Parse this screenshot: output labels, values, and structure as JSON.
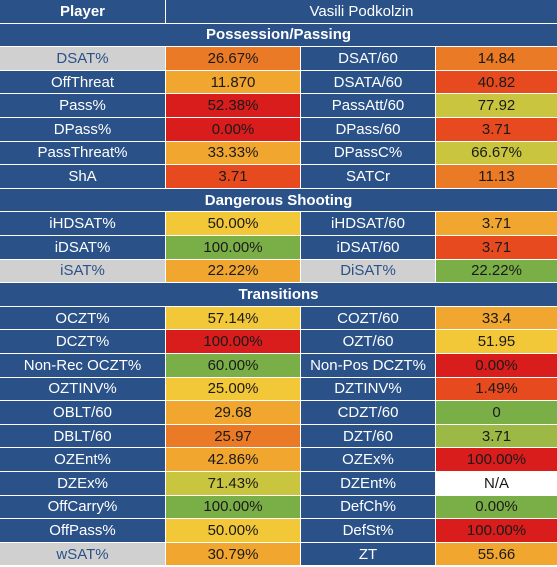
{
  "header": {
    "player_label": "Player",
    "player_name": "Vasili Podkolzin"
  },
  "colors": {
    "red": "#d91c1c",
    "red_orange": "#e64a1e",
    "orange": "#ea7a25",
    "orange_light": "#f1a630",
    "yellow": "#f3c838",
    "yellow_green": "#c9c53f",
    "green": "#7aaf48",
    "green_mid": "#9bb944",
    "white": "#ffffff",
    "label_blue": "#2b5288",
    "label_gray": "#d0d0d0"
  },
  "sections": [
    {
      "title": "Possession/Passing",
      "rows": [
        {
          "l1": "DSAT%",
          "v1": "26.67%",
          "c1": "#ea7a25",
          "g1": true,
          "l2": "DSAT/60",
          "v2": "14.84",
          "c2": "#ea7a25"
        },
        {
          "l1": "OffThreat",
          "v1": "11.870",
          "c1": "#f1a630",
          "l2": "DSATA/60",
          "v2": "40.82",
          "c2": "#e64a1e"
        },
        {
          "l1": "Pass%",
          "v1": "52.38%",
          "c1": "#d91c1c",
          "l2": "PassAtt/60",
          "v2": "77.92",
          "c2": "#c9c53f"
        },
        {
          "l1": "DPass%",
          "v1": "0.00%",
          "c1": "#d91c1c",
          "l2": "DPass/60",
          "v2": "3.71",
          "c2": "#e64a1e"
        },
        {
          "l1": "PassThreat%",
          "v1": "33.33%",
          "c1": "#f1a630",
          "l2": "DPassC%",
          "v2": "66.67%",
          "c2": "#c9c53f"
        },
        {
          "l1": "ShA",
          "v1": "3.71",
          "c1": "#e64a1e",
          "l2": "SATCr",
          "v2": "11.13",
          "c2": "#ea7a25"
        }
      ]
    },
    {
      "title": "Dangerous Shooting",
      "rows": [
        {
          "l1": "iHDSAT%",
          "v1": "50.00%",
          "c1": "#f3c838",
          "l2": "iHDSAT/60",
          "v2": "3.71",
          "c2": "#f1a630"
        },
        {
          "l1": "iDSAT%",
          "v1": "100.00%",
          "c1": "#7aaf48",
          "l2": "iDSAT/60",
          "v2": "3.71",
          "c2": "#e64a1e"
        },
        {
          "l1": "iSAT%",
          "v1": "22.22%",
          "c1": "#f1a630",
          "g1": true,
          "l2": "DiSAT%",
          "v2": "22.22%",
          "c2": "#7aaf48",
          "g2": true
        }
      ]
    },
    {
      "title": "Transitions",
      "rows": [
        {
          "l1": "OCZT%",
          "v1": "57.14%",
          "c1": "#f3c838",
          "l2": "COZT/60",
          "v2": "33.4",
          "c2": "#f1a630"
        },
        {
          "l1": "DCZT%",
          "v1": "100.00%",
          "c1": "#d91c1c",
          "l2": "OZT/60",
          "v2": "51.95",
          "c2": "#f3c838"
        },
        {
          "l1": "Non-Rec OCZT%",
          "v1": "60.00%",
          "c1": "#7aaf48",
          "l2": "Non-Pos DCZT%",
          "v2": "0.00%",
          "c2": "#d91c1c"
        },
        {
          "l1": "OZTINV%",
          "v1": "25.00%",
          "c1": "#f3c838",
          "l2": "DZTINV%",
          "v2": "1.49%",
          "c2": "#e64a1e"
        },
        {
          "l1": "OBLT/60",
          "v1": "29.68",
          "c1": "#f1a630",
          "l2": "CDZT/60",
          "v2": "0",
          "c2": "#7aaf48"
        },
        {
          "l1": "DBLT/60",
          "v1": "25.97",
          "c1": "#ea7a25",
          "l2": "DZT/60",
          "v2": "3.71",
          "c2": "#9bb944"
        },
        {
          "l1": "OZEnt%",
          "v1": "42.86%",
          "c1": "#f1a630",
          "l2": "OZEx%",
          "v2": "100.00%",
          "c2": "#d91c1c"
        },
        {
          "l1": "DZEx%",
          "v1": "71.43%",
          "c1": "#c9c53f",
          "l2": "DZEnt%",
          "v2": "N/A",
          "c2": "#ffffff"
        },
        {
          "l1": "OffCarry%",
          "v1": "100.00%",
          "c1": "#7aaf48",
          "l2": "DefCh%",
          "v2": "0.00%",
          "c2": "#7aaf48"
        },
        {
          "l1": "OffPass%",
          "v1": "50.00%",
          "c1": "#f3c838",
          "l2": "DefSt%",
          "v2": "100.00%",
          "c2": "#d91c1c"
        },
        {
          "l1": "wSAT%",
          "v1": "30.79%",
          "c1": "#f1a630",
          "g1": true,
          "l2": "ZT",
          "v2": "55.66",
          "c2": "#f1a630"
        }
      ]
    }
  ]
}
